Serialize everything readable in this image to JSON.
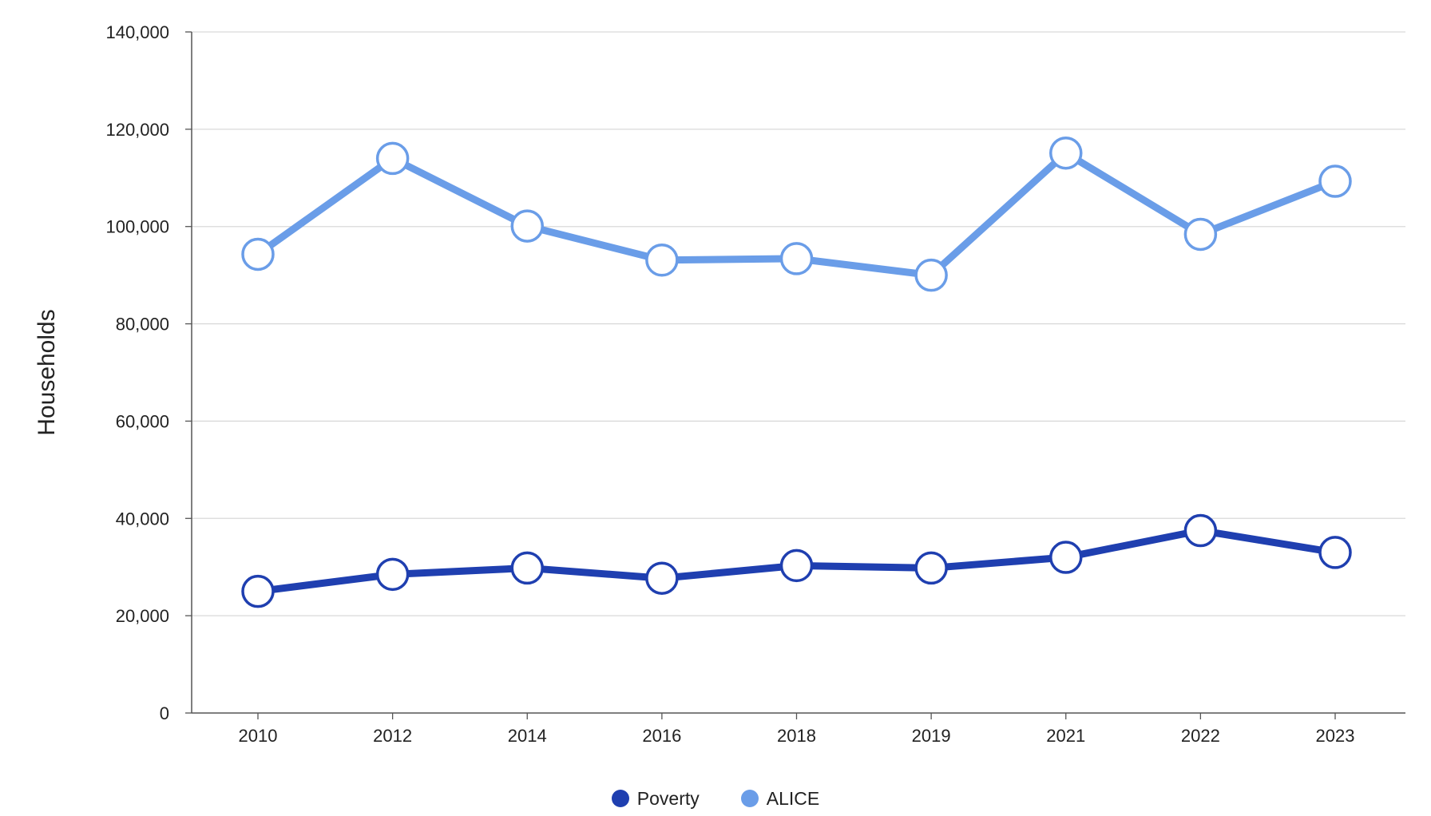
{
  "chart_data": {
    "type": "line",
    "categories": [
      "2010",
      "2012",
      "2014",
      "2016",
      "2018",
      "2019",
      "2021",
      "2022",
      "2023"
    ],
    "series": [
      {
        "name": "Poverty",
        "color": "#1f3fb0",
        "values": [
          25000,
          28500,
          29800,
          27700,
          30300,
          29800,
          32000,
          37500,
          33000
        ]
      },
      {
        "name": "ALICE",
        "color": "#6a9de8",
        "values": [
          94300,
          114000,
          100100,
          93100,
          93400,
          90000,
          115100,
          98400,
          109300
        ]
      }
    ],
    "ylabel": "Households",
    "xlabel": "",
    "ylim": [
      0,
      140000
    ],
    "yticks": [
      0,
      20000,
      40000,
      60000,
      80000,
      100000,
      120000,
      140000
    ],
    "ytick_labels": [
      "0",
      "20,000",
      "40,000",
      "60,000",
      "80,000",
      "100,000",
      "120,000",
      "140,000"
    ],
    "grid": true,
    "legend": "bottom-center"
  }
}
